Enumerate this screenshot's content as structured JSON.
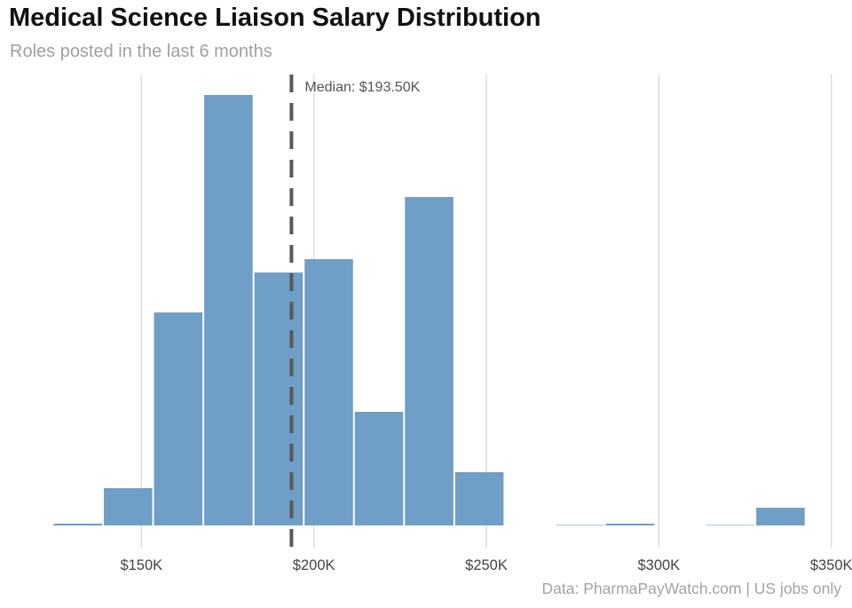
{
  "chart_data": {
    "type": "bar",
    "title": "Medical Science Liaison Salary Distribution",
    "subtitle": "Roles posted in the last 6 months",
    "caption": "Data: PharmaPayWatch.com | US jobs only",
    "xlabel": "",
    "ylabel": "",
    "bin_start": 124.3,
    "bin_width": 14.55,
    "values": [
      4,
      84,
      480,
      970,
      570,
      600,
      256,
      740,
      120,
      0,
      1,
      4,
      0,
      1,
      40
    ],
    "xlim": [
      119.3,
      356
    ],
    "ylim": [
      0,
      1016
    ],
    "x_ticks": [
      150,
      200,
      250,
      300,
      350
    ],
    "x_tick_labels": [
      "$150K",
      "$200K",
      "$250K",
      "$300K",
      "$350K"
    ],
    "median": 193.5,
    "median_label": "Median: $193.50K",
    "y_axis_shown": false,
    "grid": "vertical major only",
    "bar_color": "#6a9bc4",
    "median_line_color": "#595959"
  }
}
